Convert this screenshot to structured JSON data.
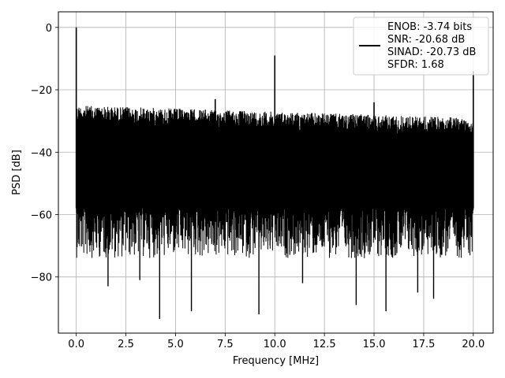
{
  "chart_data": {
    "type": "line",
    "xlabel": "Frequency [MHz]",
    "ylabel": "PSD [dB]",
    "xlim": [
      -0.9,
      21.0
    ],
    "ylim": [
      -98,
      5
    ],
    "xticks": [
      0.0,
      2.5,
      5.0,
      7.5,
      10.0,
      12.5,
      15.0,
      17.5,
      20.0
    ],
    "xtick_labels": [
      "0.0",
      "2.5",
      "5.0",
      "7.5",
      "10.0",
      "12.5",
      "15.0",
      "17.5",
      "20.0"
    ],
    "yticks": [
      0,
      -20,
      -40,
      -60,
      -80
    ],
    "ytick_labels": [
      "0",
      "−20",
      "−40",
      "−60",
      "−80"
    ],
    "grid": true,
    "legend_position": "top-right",
    "legend_lines": [
      "ENOB: -3.74 bits",
      "SNR: -20.68 dB",
      "SINAD: -20.73 dB",
      "SFDR: 1.68"
    ],
    "series_color": "#000000",
    "spikes": [
      {
        "x": 0.0,
        "y": 0
      },
      {
        "x": 10.0,
        "y": -9
      },
      {
        "x": 7.0,
        "y": -23
      },
      {
        "x": 15.0,
        "y": -24
      },
      {
        "x": 20.0,
        "y": -14
      }
    ],
    "deep_dips": [
      {
        "x": 1.6,
        "y": -83
      },
      {
        "x": 3.2,
        "y": -81
      },
      {
        "x": 4.2,
        "y": -93.5
      },
      {
        "x": 5.8,
        "y": -91
      },
      {
        "x": 9.2,
        "y": -92
      },
      {
        "x": 11.4,
        "y": -82
      },
      {
        "x": 14.1,
        "y": -89
      },
      {
        "x": 15.6,
        "y": -91
      },
      {
        "x": 17.2,
        "y": -85
      },
      {
        "x": 18.0,
        "y": -87
      }
    ],
    "noise_upper_start": -25,
    "noise_upper_end": -29,
    "noise_lower": -58
  }
}
